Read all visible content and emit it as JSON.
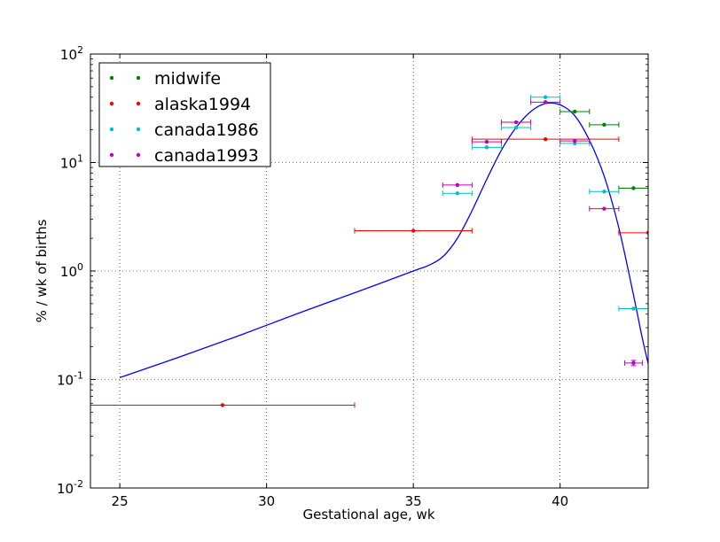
{
  "chart_data": {
    "type": "scatter",
    "title": "",
    "xlabel": "Gestational age, wk",
    "ylabel": "% / wk of births",
    "xlim": [
      24,
      43
    ],
    "ylim": [
      0.01,
      100
    ],
    "yscale": "log",
    "grid": true,
    "legend_position": "top-left",
    "x_ticks": [
      {
        "value": 25,
        "label": "25"
      },
      {
        "value": 30,
        "label": "30"
      },
      {
        "value": 35,
        "label": "35"
      },
      {
        "value": 40,
        "label": "40"
      }
    ],
    "y_ticks": [
      {
        "value": 0.01,
        "base": "10",
        "exp": "-2"
      },
      {
        "value": 0.1,
        "base": "10",
        "exp": "-1"
      },
      {
        "value": 1,
        "base": "10",
        "exp": "0"
      },
      {
        "value": 10,
        "base": "10",
        "exp": "1"
      },
      {
        "value": 100,
        "base": "10",
        "exp": "2"
      }
    ],
    "series": [
      {
        "name": "midwife",
        "color": "#008000",
        "points": [
          {
            "x": 40.5,
            "y": 29.5,
            "xerr": 0.5
          },
          {
            "x": 41.5,
            "y": 22.3,
            "xerr": 0.5
          },
          {
            "x": 42.5,
            "y": 5.8,
            "xerr": 0.5
          }
        ]
      },
      {
        "name": "alaska1994",
        "color": "#ff0000",
        "points": [
          {
            "x": 28.5,
            "y": 0.058,
            "xerr": 4.5
          },
          {
            "x": 35.0,
            "y": 2.35,
            "xerr": 2.0
          },
          {
            "x": 39.5,
            "y": 16.4,
            "xerr": 2.5
          },
          {
            "x": 43.0,
            "y": 2.25,
            "xerr": 1.0
          }
        ]
      },
      {
        "name": "canada1986",
        "color": "#00bfbf",
        "points": [
          {
            "x": 36.5,
            "y": 5.2,
            "xerr": 0.5
          },
          {
            "x": 37.5,
            "y": 13.8,
            "xerr": 0.5
          },
          {
            "x": 38.5,
            "y": 21.0,
            "xerr": 0.5
          },
          {
            "x": 39.5,
            "y": 40.0,
            "xerr": 0.5
          },
          {
            "x": 40.5,
            "y": 15.0,
            "xerr": 0.5
          },
          {
            "x": 41.5,
            "y": 5.4,
            "xerr": 0.5
          },
          {
            "x": 42.5,
            "y": 0.45,
            "xerr": 0.5
          }
        ]
      },
      {
        "name": "canada1993",
        "color": "#bf00bf",
        "points": [
          {
            "x": 36.5,
            "y": 6.2,
            "xerr": 0.5
          },
          {
            "x": 37.5,
            "y": 15.5,
            "xerr": 0.5
          },
          {
            "x": 38.5,
            "y": 23.5,
            "xerr": 0.5
          },
          {
            "x": 39.5,
            "y": 36.0,
            "xerr": 0.5
          },
          {
            "x": 40.5,
            "y": 15.8,
            "xerr": 0.5
          },
          {
            "x": 41.5,
            "y": 3.75,
            "xerr": 0.5
          },
          {
            "x": 42.5,
            "y": 0.142,
            "xerr": 0.3,
            "yerr": [
              0.134,
              0.15
            ]
          }
        ]
      }
    ],
    "model_curve": {
      "color": "#0000ff",
      "points": [
        [
          25,
          0.104
        ],
        [
          27,
          0.16
        ],
        [
          29,
          0.25
        ],
        [
          31,
          0.4
        ],
        [
          33,
          0.63
        ],
        [
          35,
          1.0
        ],
        [
          35.5,
          1.12
        ],
        [
          36,
          1.35
        ],
        [
          36.5,
          2.0
        ],
        [
          37,
          3.6
        ],
        [
          37.5,
          7.0
        ],
        [
          38,
          13.0
        ],
        [
          38.5,
          21.0
        ],
        [
          39,
          29.5
        ],
        [
          39.5,
          35.0
        ],
        [
          40,
          34.0
        ],
        [
          40.5,
          27.0
        ],
        [
          41,
          16.0
        ],
        [
          41.5,
          7.5
        ],
        [
          42,
          2.5
        ],
        [
          42.5,
          0.6
        ],
        [
          42.8,
          0.24
        ],
        [
          43,
          0.14
        ]
      ]
    }
  }
}
